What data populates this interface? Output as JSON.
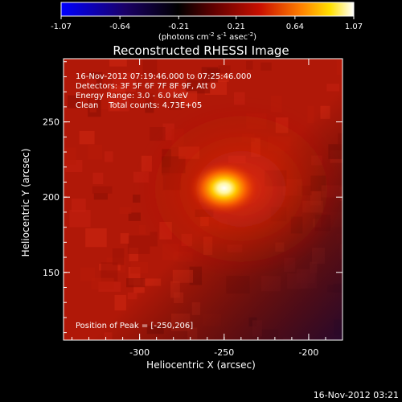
{
  "chart_data": {
    "type": "heatmap",
    "title": "Reconstructed RHESSI Image",
    "xlabel": "Heliocentric X (arcsec)",
    "ylabel": "Heliocentric Y (arcsec)",
    "colorbar": {
      "ticks": [
        "-1.07",
        "-0.64",
        "-0.21",
        "0.21",
        "0.64",
        "1.07"
      ],
      "range": [
        -1.07,
        1.07
      ],
      "colormap": "blue-black-red-yellow-white"
    },
    "x_ticks": [
      "-300",
      "-250",
      "-200"
    ],
    "y_ticks": [
      "250",
      "200",
      "150"
    ],
    "xlim": [
      -345,
      -180
    ],
    "ylim": [
      105,
      292
    ],
    "peak": {
      "x": -250,
      "y": 206
    },
    "annotation_lines": [
      "16-Nov-2012 07:19:46.000 to 07:25:46.000",
      "Detectors: 3F 5F 6F 7F 8F 9F, Att 0",
      "Energy Range: 3.0 - 6.0 keV",
      "Clean    Total counts: 4.73E+05"
    ],
    "peak_label": "Position of Peak = [-250,206]"
  },
  "colors": {
    "background": "#000000",
    "map_base": "#b01808",
    "map_dim": "#7a0c04",
    "peak_core": "#ffffff"
  },
  "footer_timestamp": "16-Nov-2012 03:21"
}
